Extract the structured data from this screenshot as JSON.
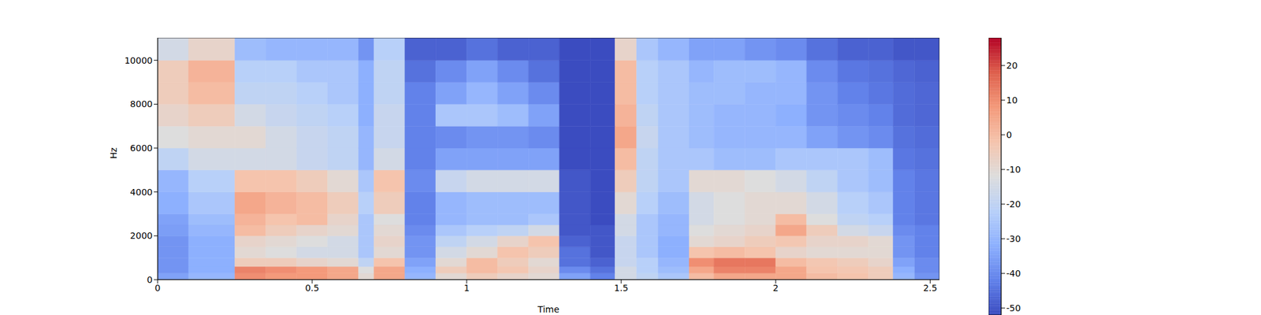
{
  "chart_data": {
    "type": "heatmap",
    "x_label": "Time",
    "y_label": "Hz",
    "xlim": [
      0,
      2.53
    ],
    "ylim": [
      0,
      11025
    ],
    "xticks": [
      0,
      0.5,
      1,
      1.5,
      2,
      2.5
    ],
    "yticks": [
      0,
      2000,
      4000,
      6000,
      8000,
      10000
    ],
    "x_edges": [
      0,
      0.1,
      0.25,
      0.35,
      0.45,
      0.55,
      0.65,
      0.7,
      0.8,
      0.9,
      1.0,
      1.1,
      1.2,
      1.3,
      1.4,
      1.48,
      1.55,
      1.62,
      1.72,
      1.8,
      1.9,
      2.0,
      2.1,
      2.2,
      2.3,
      2.38,
      2.45,
      2.53
    ],
    "y_edges": [
      0,
      300,
      600,
      1000,
      1500,
      2000,
      2500,
      3000,
      4000,
      5000,
      6000,
      7000,
      8000,
      9000,
      10000,
      11025
    ],
    "cells": [
      [
        -35,
        -30,
        10,
        8,
        8,
        5,
        -10,
        5,
        -30,
        -10,
        -5,
        -8,
        -10,
        -35,
        -42,
        -15,
        -20,
        -25,
        0,
        5,
        5,
        5,
        0,
        -2,
        -5,
        -30,
        -38
      ],
      [
        -38,
        -32,
        12,
        10,
        8,
        5,
        -12,
        5,
        -32,
        -5,
        0,
        -3,
        -8,
        -40,
        -45,
        -15,
        -22,
        -28,
        5,
        12,
        12,
        5,
        -2,
        -3,
        -5,
        -32,
        -40
      ],
      [
        -38,
        -32,
        -5,
        -5,
        -8,
        -10,
        -20,
        -2,
        -35,
        -10,
        0,
        -5,
        -10,
        -45,
        -48,
        -18,
        -22,
        -30,
        10,
        14,
        14,
        0,
        -3,
        -5,
        -8,
        -35,
        -40
      ],
      [
        -38,
        -32,
        -10,
        -12,
        -15,
        -15,
        -25,
        -10,
        -38,
        -15,
        -10,
        -2,
        -5,
        -45,
        -50,
        -18,
        -25,
        -32,
        -2,
        0,
        -2,
        -8,
        -10,
        -10,
        -10,
        -38,
        -42
      ],
      [
        -38,
        -32,
        -8,
        -10,
        -12,
        -15,
        -25,
        -8,
        -38,
        -20,
        -15,
        -8,
        -2,
        -48,
        -50,
        -18,
        -25,
        -32,
        -10,
        -8,
        -5,
        -3,
        -8,
        -8,
        -10,
        -38,
        -42
      ],
      [
        -36,
        -30,
        0,
        -5,
        -8,
        -10,
        -25,
        -10,
        -40,
        -25,
        -22,
        -20,
        -15,
        -50,
        -50,
        -15,
        -25,
        -30,
        -12,
        -10,
        -8,
        5,
        -5,
        -15,
        -18,
        -40,
        -42
      ],
      [
        -35,
        -28,
        2,
        -2,
        0,
        -8,
        -25,
        -12,
        -42,
        -30,
        -28,
        -28,
        -25,
        -50,
        -52,
        -15,
        -25,
        -30,
        -15,
        -12,
        -10,
        0,
        -12,
        -20,
        -22,
        -42,
        -44
      ],
      [
        -32,
        -25,
        5,
        2,
        0,
        -5,
        -22,
        -5,
        -42,
        -30,
        -28,
        -28,
        -28,
        -50,
        -52,
        -10,
        -22,
        -28,
        -15,
        -12,
        -10,
        -10,
        -15,
        -22,
        -25,
        -42,
        -44
      ],
      [
        -30,
        -22,
        -2,
        -2,
        -5,
        -10,
        -25,
        -2,
        -40,
        -18,
        -15,
        -15,
        -15,
        -50,
        -52,
        -5,
        -20,
        -25,
        -10,
        -10,
        -12,
        -15,
        -20,
        -25,
        -28,
        -42,
        -44
      ],
      [
        -20,
        -15,
        -15,
        -15,
        -18,
        -20,
        -30,
        -15,
        -42,
        -35,
        -35,
        -35,
        -35,
        -52,
        -52,
        0,
        -20,
        -25,
        -25,
        -28,
        -28,
        -25,
        -25,
        -25,
        -28,
        -44,
        -45
      ],
      [
        -12,
        -10,
        -10,
        -15,
        -18,
        -20,
        -30,
        -18,
        -42,
        -40,
        -38,
        -38,
        -40,
        -52,
        -52,
        5,
        -18,
        -25,
        -28,
        -30,
        -30,
        -30,
        -35,
        -38,
        -40,
        -45,
        -46
      ],
      [
        -8,
        -5,
        -15,
        -18,
        -20,
        -22,
        -32,
        -18,
        -42,
        -25,
        -25,
        -28,
        -35,
        -52,
        -52,
        2,
        -20,
        -25,
        -28,
        -30,
        -30,
        -32,
        -38,
        -40,
        -42,
        -46,
        -47
      ],
      [
        -5,
        0,
        -20,
        -20,
        -22,
        -25,
        -32,
        -20,
        -42,
        -35,
        -30,
        -35,
        -40,
        -52,
        -52,
        0,
        -22,
        -25,
        -28,
        -28,
        -30,
        -30,
        -38,
        -42,
        -44,
        -46,
        -47
      ],
      [
        -5,
        2,
        -22,
        -22,
        -25,
        -25,
        -32,
        -20,
        -45,
        -40,
        -35,
        -40,
        -45,
        -52,
        -52,
        0,
        -22,
        -25,
        -30,
        -28,
        -28,
        -30,
        -40,
        -44,
        -45,
        -47,
        -48
      ],
      [
        -15,
        -8,
        -28,
        -30,
        -30,
        -30,
        -38,
        -22,
        -48,
        -48,
        -45,
        -48,
        -48,
        -52,
        -52,
        -8,
        -25,
        -30,
        -35,
        -35,
        -38,
        -40,
        -45,
        -48,
        -48,
        -50,
        -50
      ]
    ],
    "colorbar": {
      "range": [
        -52,
        28
      ],
      "ticks": [
        -50,
        -40,
        -30,
        -20,
        -10,
        0,
        10,
        20
      ]
    }
  }
}
